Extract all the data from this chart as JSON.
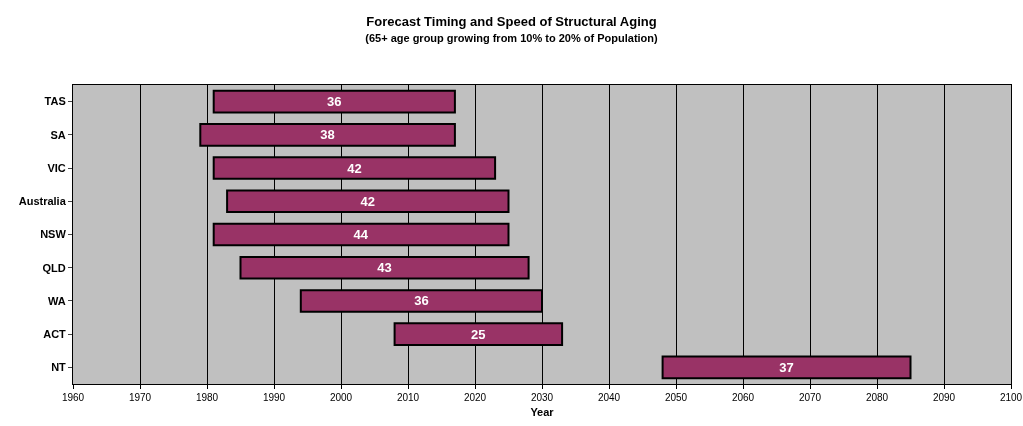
{
  "chart_data": {
    "type": "bar",
    "orientation": "horizontal",
    "title": "Forecast Timing and Speed of Structural Aging",
    "subtitle": "(65+ age group growing from 10% to 20% of Population)",
    "xlabel": "Year",
    "categories": [
      "TAS",
      "SA",
      "VIC",
      "Australia",
      "NSW",
      "QLD",
      "WA",
      "ACT",
      "NT"
    ],
    "base": [
      1981,
      1979,
      1981,
      1983,
      1981,
      1985,
      1994,
      2008,
      2048
    ],
    "values": [
      36,
      38,
      42,
      42,
      44,
      43,
      36,
      25,
      37
    ],
    "color": "#993366",
    "data_labels": true,
    "grid": "x",
    "xlim": [
      1960,
      2100
    ],
    "xticks": [
      1960,
      1970,
      1980,
      1990,
      2000,
      2010,
      2020,
      2030,
      2040,
      2050,
      2060,
      2070,
      2080,
      2090,
      2100
    ]
  }
}
